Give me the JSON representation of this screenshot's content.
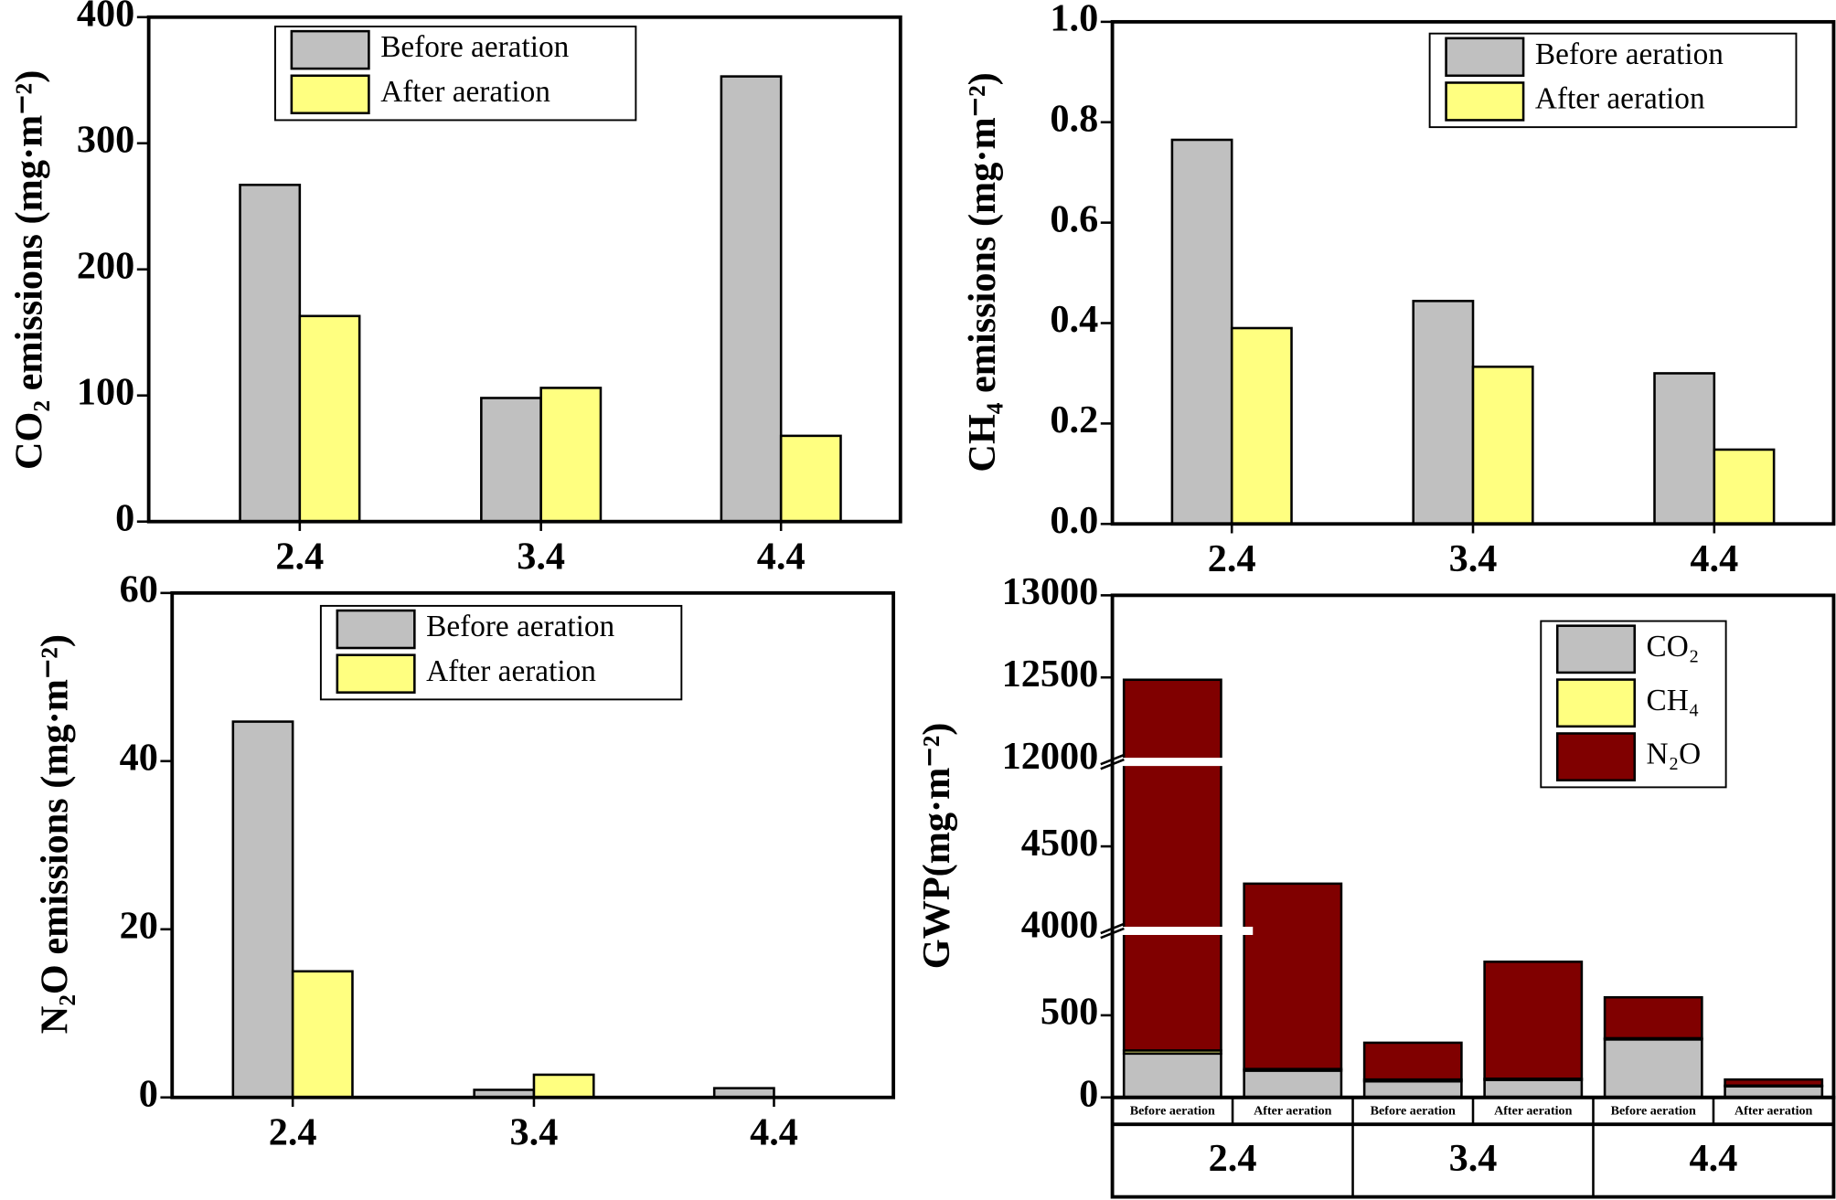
{
  "chart_data": [
    {
      "type": "bar",
      "ylabel": "CO₂ emissions (mg·m⁻²)",
      "categories": [
        "2.4",
        "3.4",
        "4.4"
      ],
      "series": [
        {
          "name": "Before aeration",
          "color": "#c0c0c0",
          "values": [
            267,
            98,
            353
          ]
        },
        {
          "name": "After aeration",
          "color": "#ffff80",
          "values": [
            163,
            106,
            68
          ]
        }
      ],
      "ylim": [
        0,
        400
      ],
      "yticks": [
        0,
        100,
        200,
        300,
        400
      ],
      "legend": "top"
    },
    {
      "type": "bar",
      "ylabel": "CH₄ emissions (mg·m⁻²)",
      "categories": [
        "2.4",
        "3.4",
        "4.4"
      ],
      "series": [
        {
          "name": "Before aeration",
          "color": "#c0c0c0",
          "values": [
            0.765,
            0.444,
            0.3
          ]
        },
        {
          "name": "After aeration",
          "color": "#ffff80",
          "values": [
            0.39,
            0.313,
            0.148
          ]
        }
      ],
      "ylim": [
        0,
        1.0
      ],
      "yticks": [
        {
          "value": 0,
          "label": "0.0"
        },
        0.2,
        0.4,
        0.6,
        0.8,
        {
          "value": 1.0,
          "label": "1.0"
        }
      ],
      "legend": "top right"
    },
    {
      "type": "bar",
      "ylabel": "N₂O emissions (mg·m⁻²)",
      "categories": [
        "2.4",
        "3.4",
        "4.4"
      ],
      "series": [
        {
          "name": "Before aeration",
          "color": "#c0c0c0",
          "values": [
            44.7,
            0.9,
            1.1
          ]
        },
        {
          "name": "After aeration",
          "color": "#ffff80",
          "values": [
            15,
            2.7,
            0
          ]
        }
      ],
      "ylim": [
        0,
        60
      ],
      "yticks": [
        0,
        20,
        40,
        60
      ],
      "legend": "top"
    },
    {
      "type": "stacked_bar",
      "ylabel": "GWP(mg·m⁻²)",
      "categories": [
        "Before aeration",
        "After aeration",
        "Before aeration",
        "After aeration",
        "Before aeration",
        "After aeration"
      ],
      "groups": [
        "2.4",
        "3.4",
        "4.4"
      ],
      "series": [
        {
          "name": "CO₂",
          "color": "#c0c0c0",
          "values": [
            267,
            163,
            98,
            106,
            353,
            68
          ]
        },
        {
          "name": "CH₄",
          "color": "#ffff80",
          "values": [
            19,
            10,
            11,
            8,
            7.5,
            4
          ]
        },
        {
          "name": "N₂O",
          "color": "#800000",
          "values": [
            12200,
            4100,
            224,
            712,
            249,
            37
          ]
        }
      ],
      "ylim": [
        0,
        13000
      ],
      "y_breaks": [
        [
          1000,
          4000
        ],
        [
          5000,
          12000
        ]
      ],
      "yticks": [
        0,
        500,
        4000,
        4500,
        12000,
        12500,
        13000
      ],
      "legend": "top right"
    }
  ]
}
